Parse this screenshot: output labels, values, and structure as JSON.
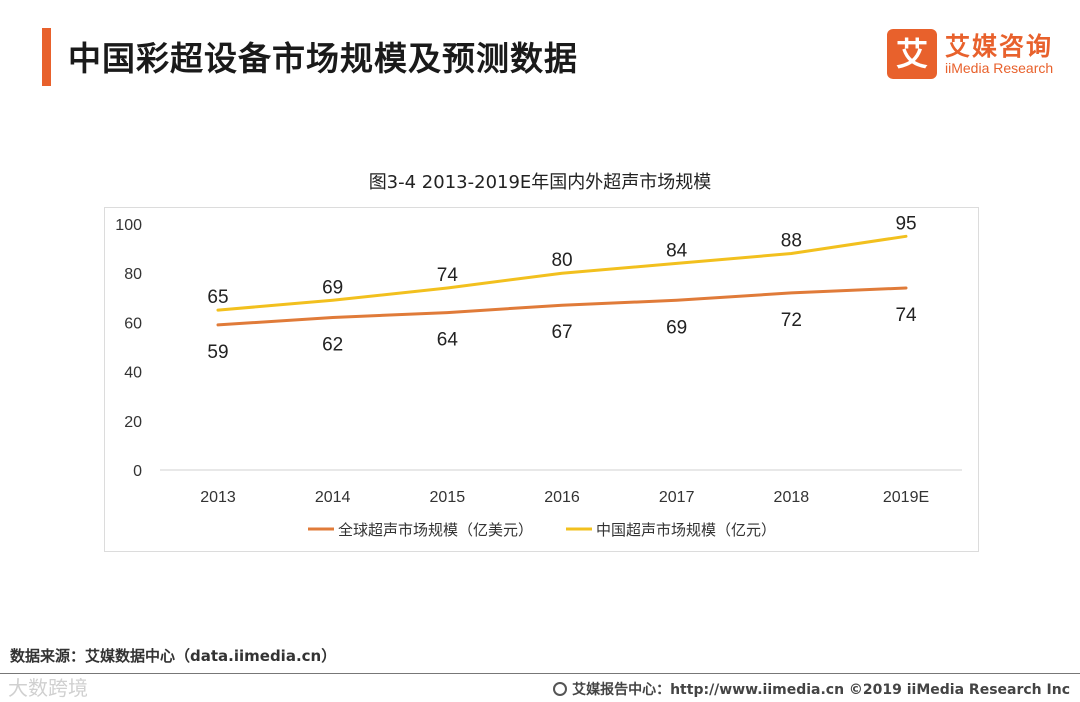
{
  "header": {
    "title": "中国彩超设备市场规模及预测数据"
  },
  "logo": {
    "glyph": "艾",
    "name_cn": "艾媒咨询",
    "name_en": "iiMedia Research"
  },
  "chart_data": {
    "type": "line",
    "title": "图3-4  2013-2019E年国内外超声市场规模",
    "categories": [
      "2013",
      "2014",
      "2015",
      "2016",
      "2017",
      "2018",
      "2019E"
    ],
    "series": [
      {
        "name": "全球超声市场规模（亿美元）",
        "values": [
          59,
          62,
          64,
          67,
          69,
          72,
          74
        ],
        "color": "#e07b39",
        "label_position": "below"
      },
      {
        "name": "中国超声市场规模（亿元）",
        "values": [
          65,
          69,
          74,
          80,
          84,
          88,
          95
        ],
        "color": "#f2c01e",
        "label_position": "above"
      }
    ],
    "ylim": [
      0,
      100
    ],
    "yticks": [
      0,
      20,
      40,
      60,
      80,
      100
    ],
    "xlabel": "",
    "ylabel": "",
    "legend_position": "bottom"
  },
  "source": "数据来源：艾媒数据中心（data.iimedia.cn）",
  "footer": "艾媒报告中心：http://www.iimedia.cn  ©2019  iiMedia Research  Inc",
  "watermark": "大数跨境"
}
